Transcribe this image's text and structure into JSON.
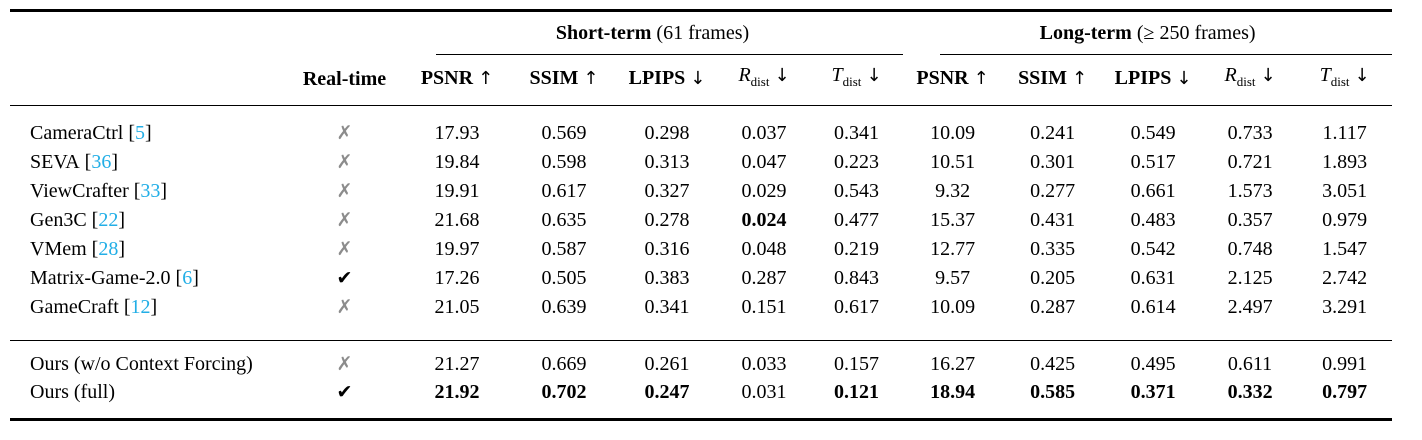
{
  "format": {
    "bracket_open": "[",
    "bracket_close": "]"
  },
  "icons": {
    "check": "✔",
    "cross": "✗"
  },
  "colors": {
    "citation": "#22AEE6",
    "cross_gray": "#8c8c8c",
    "check_black": "#000000",
    "rule": "#000000"
  },
  "table": {
    "groups": [
      {
        "bold": "Short-term",
        "rest": " (61 frames)"
      },
      {
        "bold": "Long-term",
        "rest": " (≥ 250 frames)"
      }
    ],
    "headers": {
      "method": "",
      "realtime": "Real-time",
      "metrics": [
        {
          "label": "PSNR",
          "sub": "",
          "arrow": "↑",
          "italic": false
        },
        {
          "label": "SSIM",
          "sub": "",
          "arrow": "↑",
          "italic": false
        },
        {
          "label": "LPIPS",
          "sub": "",
          "arrow": "↓",
          "italic": false
        },
        {
          "label": "R",
          "sub": "dist",
          "arrow": "↓",
          "italic": true
        },
        {
          "label": "T",
          "sub": "dist",
          "arrow": "↓",
          "italic": true
        }
      ]
    },
    "baseline_rows": [
      {
        "name": "CameraCtrl",
        "cite": "5",
        "realtime": false,
        "short": [
          "17.93",
          "0.569",
          "0.298",
          "0.037",
          "0.341"
        ],
        "short_bold": [
          false,
          false,
          false,
          false,
          false
        ],
        "long": [
          "10.09",
          "0.241",
          "0.549",
          "0.733",
          "1.117"
        ],
        "long_bold": [
          false,
          false,
          false,
          false,
          false
        ]
      },
      {
        "name": "SEVA",
        "cite": "36",
        "realtime": false,
        "short": [
          "19.84",
          "0.598",
          "0.313",
          "0.047",
          "0.223"
        ],
        "short_bold": [
          false,
          false,
          false,
          false,
          false
        ],
        "long": [
          "10.51",
          "0.301",
          "0.517",
          "0.721",
          "1.893"
        ],
        "long_bold": [
          false,
          false,
          false,
          false,
          false
        ]
      },
      {
        "name": "ViewCrafter",
        "cite": "33",
        "realtime": false,
        "short": [
          "19.91",
          "0.617",
          "0.327",
          "0.029",
          "0.543"
        ],
        "short_bold": [
          false,
          false,
          false,
          false,
          false
        ],
        "long": [
          "9.32",
          "0.277",
          "0.661",
          "1.573",
          "3.051"
        ],
        "long_bold": [
          false,
          false,
          false,
          false,
          false
        ]
      },
      {
        "name": "Gen3C",
        "cite": "22",
        "realtime": false,
        "short": [
          "21.68",
          "0.635",
          "0.278",
          "0.024",
          "0.477"
        ],
        "short_bold": [
          false,
          false,
          false,
          true,
          false
        ],
        "long": [
          "15.37",
          "0.431",
          "0.483",
          "0.357",
          "0.979"
        ],
        "long_bold": [
          false,
          false,
          false,
          false,
          false
        ]
      },
      {
        "name": "VMem",
        "cite": "28",
        "realtime": false,
        "short": [
          "19.97",
          "0.587",
          "0.316",
          "0.048",
          "0.219"
        ],
        "short_bold": [
          false,
          false,
          false,
          false,
          false
        ],
        "long": [
          "12.77",
          "0.335",
          "0.542",
          "0.748",
          "1.547"
        ],
        "long_bold": [
          false,
          false,
          false,
          false,
          false
        ]
      },
      {
        "name": "Matrix-Game-2.0",
        "cite": "6",
        "realtime": true,
        "short": [
          "17.26",
          "0.505",
          "0.383",
          "0.287",
          "0.843"
        ],
        "short_bold": [
          false,
          false,
          false,
          false,
          false
        ],
        "long": [
          "9.57",
          "0.205",
          "0.631",
          "2.125",
          "2.742"
        ],
        "long_bold": [
          false,
          false,
          false,
          false,
          false
        ]
      },
      {
        "name": "GameCraft",
        "cite": "12",
        "realtime": false,
        "short": [
          "21.05",
          "0.639",
          "0.341",
          "0.151",
          "0.617"
        ],
        "short_bold": [
          false,
          false,
          false,
          false,
          false
        ],
        "long": [
          "10.09",
          "0.287",
          "0.614",
          "2.497",
          "3.291"
        ],
        "long_bold": [
          false,
          false,
          false,
          false,
          false
        ]
      }
    ],
    "ours_rows": [
      {
        "name": "Ours (w/o Context Forcing)",
        "cite": null,
        "realtime": false,
        "short": [
          "21.27",
          "0.669",
          "0.261",
          "0.033",
          "0.157"
        ],
        "short_bold": [
          false,
          false,
          false,
          false,
          false
        ],
        "long": [
          "16.27",
          "0.425",
          "0.495",
          "0.611",
          "0.991"
        ],
        "long_bold": [
          false,
          false,
          false,
          false,
          false
        ]
      },
      {
        "name": "Ours (full)",
        "cite": null,
        "realtime": true,
        "short": [
          "21.92",
          "0.702",
          "0.247",
          "0.031",
          "0.121"
        ],
        "short_bold": [
          true,
          true,
          true,
          false,
          true
        ],
        "long": [
          "18.94",
          "0.585",
          "0.371",
          "0.332",
          "0.797"
        ],
        "long_bold": [
          true,
          true,
          true,
          true,
          true
        ]
      }
    ]
  }
}
